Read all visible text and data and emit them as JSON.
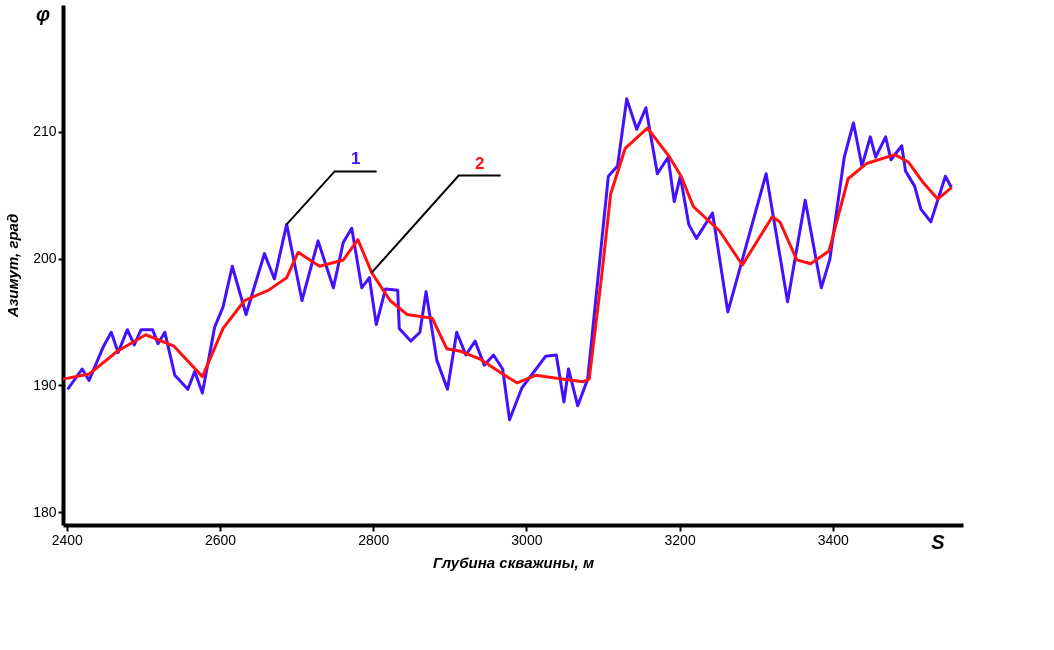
{
  "chart_data": {
    "type": "line",
    "xlabel": "Глубина скважины, м",
    "ylabel": "Азимут, град",
    "annotations": [
      "φ",
      "S"
    ],
    "xlim": [
      2395,
      3570
    ],
    "ylim": [
      179,
      220
    ],
    "xticks": [
      2400,
      2600,
      2800,
      3000,
      3200,
      3400
    ],
    "yticks": [
      180,
      190,
      200,
      210
    ],
    "grid": false,
    "series": [
      {
        "name": "1",
        "color": "#4411ff",
        "x": [
          2401,
          2420,
          2429,
          2448,
          2458,
          2467,
          2479,
          2488,
          2497,
          2512,
          2519,
          2528,
          2541,
          2558,
          2567,
          2577,
          2593,
          2604,
          2616,
          2634,
          2658,
          2671,
          2687,
          2707,
          2728,
          2748,
          2761,
          2772,
          2785,
          2795,
          2804,
          2816,
          2832,
          2834,
          2849,
          2861,
          2869,
          2883,
          2897,
          2909,
          2921,
          2933,
          2945,
          2957,
          2969,
          2978,
          2994,
          3025,
          3039,
          3049,
          3055,
          3067,
          3080,
          3107,
          3119,
          3131,
          3144,
          3156,
          3171,
          3185,
          3193,
          3201,
          3212,
          3222,
          3243,
          3263,
          3313,
          3341,
          3364,
          3385,
          3396,
          3415,
          3427,
          3438,
          3449,
          3456,
          3469,
          3476,
          3490,
          3495,
          3507,
          3515,
          3528,
          3547,
          3555
        ],
        "values": [
          189.7,
          191.3,
          190.4,
          193.1,
          194.2,
          192.6,
          194.4,
          193.2,
          194.4,
          194.4,
          193.3,
          194.2,
          190.8,
          189.7,
          191.1,
          189.4,
          194.6,
          196.2,
          199.4,
          195.6,
          200.4,
          198.4,
          202.7,
          196.7,
          201.4,
          197.7,
          201.3,
          202.4,
          197.7,
          198.5,
          194.8,
          197.6,
          197.5,
          194.5,
          193.5,
          194.2,
          197.4,
          192.0,
          189.7,
          194.2,
          192.4,
          193.5,
          191.6,
          192.4,
          191.3,
          187.3,
          189.8,
          192.3,
          192.4,
          188.7,
          191.3,
          188.4,
          190.5,
          206.5,
          207.3,
          212.6,
          210.2,
          211.9,
          206.7,
          208.0,
          204.5,
          206.5,
          202.7,
          201.6,
          203.6,
          195.8,
          206.7,
          196.6,
          204.6,
          197.7,
          199.9,
          208.0,
          210.7,
          207.3,
          209.6,
          208.0,
          209.6,
          207.8,
          208.9,
          206.9,
          205.7,
          203.9,
          202.9,
          206.5,
          205.6
        ]
      },
      {
        "name": "2",
        "color": "#ff1111",
        "x": [
          2395,
          2429,
          2466,
          2503,
          2540,
          2577,
          2604,
          2632,
          2663,
          2687,
          2702,
          2730,
          2761,
          2780,
          2798,
          2822,
          2844,
          2877,
          2896,
          2914,
          2939,
          2969,
          2988,
          3012,
          3049,
          3074,
          3082,
          3098,
          3110,
          3129,
          3158,
          3187,
          3202,
          3218,
          3252,
          3282,
          3321,
          3331,
          3353,
          3371,
          3395,
          3420,
          3444,
          3481,
          3499,
          3518,
          3537,
          3555
        ],
        "values": [
          190.5,
          190.9,
          192.7,
          194.0,
          193.1,
          190.7,
          194.5,
          196.7,
          197.5,
          198.5,
          200.5,
          199.4,
          199.9,
          201.5,
          198.9,
          196.7,
          195.6,
          195.3,
          192.9,
          192.7,
          192.1,
          190.9,
          190.2,
          190.8,
          190.5,
          190.3,
          190.5,
          198.5,
          205.1,
          208.7,
          210.3,
          208.0,
          206.5,
          204.1,
          202.2,
          199.5,
          203.3,
          202.9,
          199.9,
          199.6,
          200.6,
          206.3,
          207.5,
          208.2,
          207.6,
          206.0,
          204.7,
          205.6
        ]
      }
    ]
  }
}
